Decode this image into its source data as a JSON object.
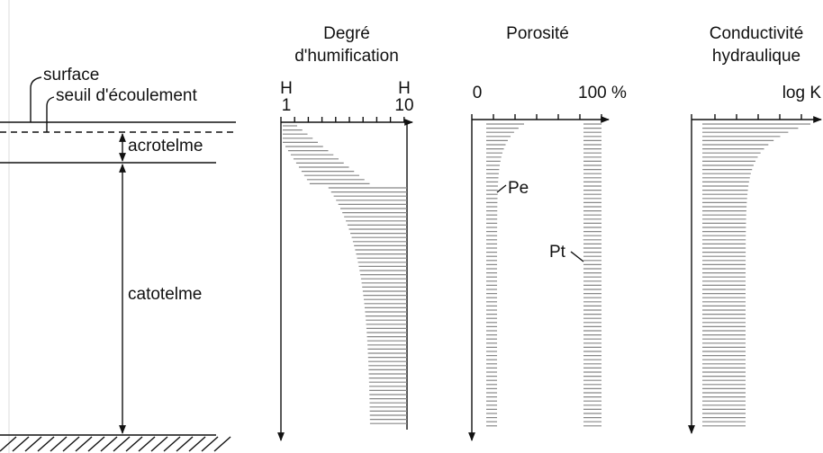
{
  "left_profile": {
    "surface": "surface",
    "flow_threshold": "seuil d'écoulement",
    "acrotelm": "acrotelme",
    "catotelm": "catotelme"
  },
  "panels": [
    {
      "title_lines": [
        "Degré",
        "d'humification"
      ],
      "axis_labels": [
        "H",
        "1",
        "H",
        "10"
      ]
    },
    {
      "title_lines": [
        "Porosité"
      ],
      "axis_labels": [
        "0",
        "100 %"
      ],
      "curve_labels": [
        "Pe",
        "Pt"
      ]
    },
    {
      "title_lines": [
        "Conductivité",
        "hydraulique"
      ],
      "axis_labels": [
        "log K"
      ]
    }
  ]
}
